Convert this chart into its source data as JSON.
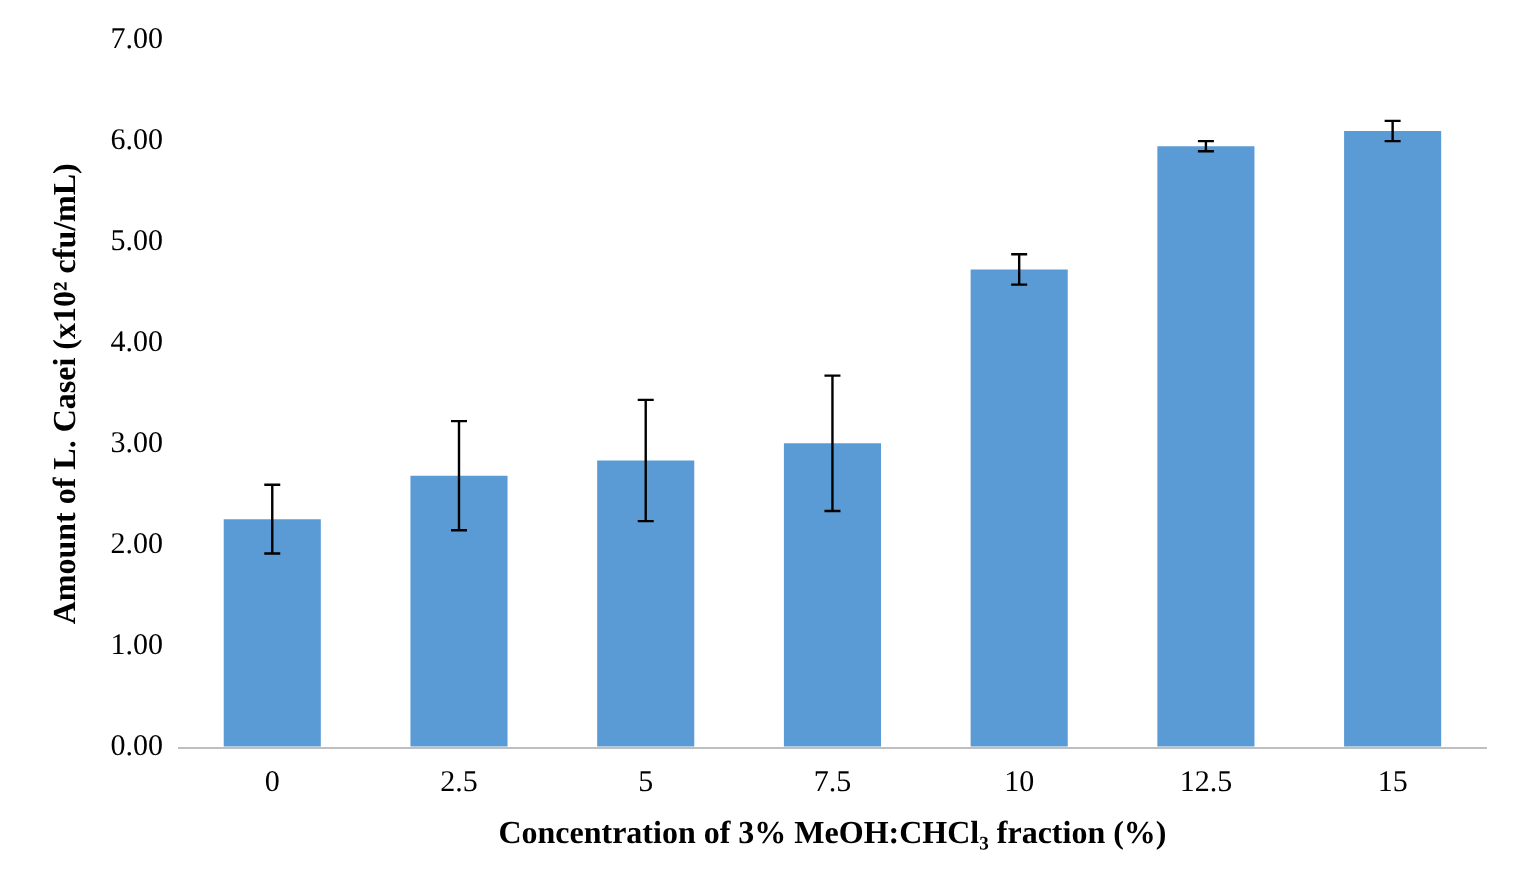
{
  "chart_data": {
    "type": "bar",
    "xlabel": "Concentration of 3% MeOH:CHCl₃ fraction (%)",
    "ylabel": "Amount of L. Casei (x10² cfu/mL)",
    "categories": [
      "0",
      "2.5",
      "5",
      "7.5",
      "10",
      "12.5",
      "15"
    ],
    "values": [
      2.26,
      2.69,
      2.84,
      3.01,
      4.73,
      5.95,
      6.1
    ],
    "errors": [
      0.34,
      0.54,
      0.6,
      0.67,
      0.15,
      0.05,
      0.1
    ],
    "color": "#5b9bd5",
    "ylim": [
      0,
      7
    ],
    "yticks": [
      {
        "value": 0,
        "label": "0.00"
      },
      {
        "value": 1,
        "label": "1.00"
      },
      {
        "value": 2,
        "label": "2.00"
      },
      {
        "value": 3,
        "label": "3.00"
      },
      {
        "value": 4,
        "label": "4.00"
      },
      {
        "value": 5,
        "label": "5.00"
      },
      {
        "value": 6,
        "label": "6.00"
      },
      {
        "value": 7,
        "label": "7.00"
      }
    ],
    "grid": false,
    "legend": false
  }
}
